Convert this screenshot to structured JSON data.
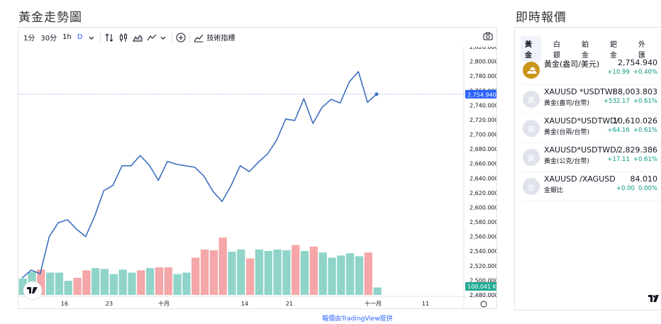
{
  "page": {
    "left_title": "黃金走勢圖",
    "right_title": "即時報價",
    "credit": "報價由TradingView提供"
  },
  "toolbar": {
    "interval_1": "1分",
    "interval_30": "30分",
    "interval_1h": "1h",
    "interval_d": "D",
    "indicators": "技術指標",
    "icons": [
      "chevron-down-icon",
      "compare-icon",
      "candles-icon",
      "area-icon",
      "line-icon",
      "add-icon",
      "indicators-icon",
      "camera-icon"
    ]
  },
  "chart_data": {
    "type": "line",
    "x_tick_labels": [
      "16",
      "23",
      "十月",
      "14",
      "21",
      "十一月",
      "11"
    ],
    "y_tick_labels": [
      "2,820.000",
      "2,800.000",
      "2,780.000",
      "2,760.000",
      "2,740.000",
      "2,720.000",
      "2,700.000",
      "2,680.000",
      "2,660.000",
      "2,640.000",
      "2,620.000",
      "2,600.000",
      "2,580.000",
      "2,560.000",
      "2,540.000",
      "2,520.000",
      "2,500.000",
      "2,480.000"
    ],
    "ylim": [
      2480,
      2820
    ],
    "last_price_label": "2,754.940",
    "volume_label": "100.041 K",
    "series": [
      {
        "values": [
          2503,
          2514,
          2509,
          2560,
          2579,
          2583,
          2570,
          2560,
          2588,
          2623,
          2630,
          2657,
          2657,
          2671,
          2658,
          2637,
          2663,
          2659,
          2657,
          2655,
          2643,
          2622,
          2608,
          2630,
          2657,
          2649,
          2662,
          2673,
          2692,
          2721,
          2719,
          2749,
          2715,
          2737,
          2748,
          2743,
          2772,
          2786,
          2744,
          2755
        ]
      }
    ],
    "volume": {
      "values": [
        22,
        31,
        34,
        30,
        30,
        19,
        23,
        33,
        36,
        35,
        28,
        34,
        30,
        33,
        36,
        37,
        37,
        28,
        30,
        50,
        61,
        60,
        77,
        58,
        61,
        49,
        61,
        59,
        61,
        60,
        67,
        59,
        65,
        57,
        50,
        53,
        56,
        52,
        57,
        10
      ],
      "up": [
        true,
        true,
        false,
        true,
        true,
        true,
        false,
        false,
        true,
        true,
        true,
        true,
        true,
        false,
        true,
        false,
        false,
        true,
        true,
        false,
        false,
        false,
        false,
        true,
        true,
        false,
        true,
        true,
        true,
        true,
        false,
        true,
        false,
        true,
        true,
        true,
        true,
        true,
        false,
        true
      ],
      "up_color": "#8fd4c8",
      "down_color": "#f4a6a8"
    },
    "line_color": "#3d6fbf"
  },
  "quotes": {
    "tabs": [
      "黃金",
      "白銀",
      "鉑金",
      "鈀金",
      "外匯"
    ],
    "rows": [
      {
        "symbol": "黃金(盎司/美元)",
        "desc": "",
        "price": "2,754.940",
        "change": "+10.99",
        "pct": "+0.40%",
        "logo": "gold-bars-icon"
      },
      {
        "symbol": "XAUUSD *USDTWI",
        "desc": "黃金(盎司/台幣)",
        "price": "88,003.803",
        "change": "+532.17",
        "pct": "+0.61%",
        "logo": "gold-placeholder-icon"
      },
      {
        "symbol": "XAUUSD*USDTWD/",
        "desc": "黃金(台兩/台幣)",
        "price": "10,610.026",
        "change": "+64.16",
        "pct": "+0.61%",
        "logo": "gold-placeholder-icon"
      },
      {
        "symbol": "XAUUSD*USDTWD/",
        "desc": "黃金(公克/台幣)",
        "price": "2,829.386",
        "change": "+17.11",
        "pct": "+0.61%",
        "logo": "gold-placeholder-icon"
      },
      {
        "symbol": "XAUUSD /XAGUSD",
        "desc": "金銀比",
        "price": "84.010",
        "change": "+0.00",
        "pct": "0.00%",
        "logo": "silver-placeholder-icon"
      }
    ],
    "logo_glyph_gold": "黃",
    "logo_glyph_silver": "金"
  },
  "colors": {
    "accent": "#2962ff",
    "up": "#089981",
    "price_badge": "#2962ff",
    "volume_badge": "#22ab94"
  }
}
